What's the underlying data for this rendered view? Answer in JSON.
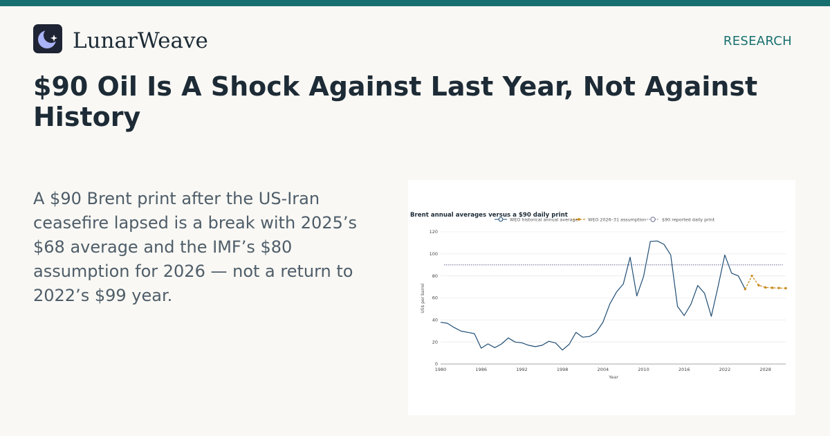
{
  "brand": {
    "name": "LunarWeave",
    "logo_icon": "crescent-moon-star-icon"
  },
  "section_label": "RESEARCH",
  "headline": "$90 Oil Is A Shock Against Last Year, Not Against History",
  "dek": "A $90 Brent print after the US-Iran ceasefire lapsed is a break with 2025’s $68 average and the IMF’s $80 assumption for 2026 — not a return to 2022’s $99 year.",
  "colors": {
    "accent": "#17706f",
    "historical": "#1f4d73",
    "assumption": "#c98a1a",
    "reference": "#6f6f96",
    "text_dark": "#1d2b36"
  },
  "chart_data": {
    "type": "line",
    "title": "Brent annual averages versus a $90 daily print",
    "xlabel": "Year",
    "ylabel": "US$ per barrel",
    "xlim": [
      1980,
      2031
    ],
    "ylim": [
      0,
      120
    ],
    "x_ticks": [
      1980,
      1986,
      1992,
      1998,
      2004,
      2010,
      2016,
      2022,
      2028
    ],
    "y_ticks": [
      0,
      20,
      40,
      60,
      80,
      100,
      120
    ],
    "grid": "horizontal",
    "legend_position": "top",
    "series": [
      {
        "name": "WEO historical annual average",
        "style": "solid",
        "x": [
          1980,
          1981,
          1982,
          1983,
          1984,
          1985,
          1986,
          1987,
          1988,
          1989,
          1990,
          1991,
          1992,
          1993,
          1994,
          1995,
          1996,
          1997,
          1998,
          1999,
          2000,
          2001,
          2002,
          2003,
          2004,
          2005,
          2006,
          2007,
          2008,
          2009,
          2010,
          2011,
          2012,
          2013,
          2014,
          2015,
          2016,
          2017,
          2018,
          2019,
          2020,
          2021,
          2022,
          2023,
          2024,
          2025
        ],
        "values": [
          37.9,
          37.0,
          33.2,
          29.9,
          28.8,
          27.6,
          14.4,
          18.3,
          14.9,
          18.2,
          23.7,
          20.0,
          19.3,
          17.0,
          15.8,
          17.0,
          20.6,
          19.1,
          12.7,
          17.9,
          28.7,
          24.4,
          25.0,
          28.8,
          38.0,
          54.4,
          65.4,
          72.7,
          97.0,
          61.8,
          79.6,
          111.3,
          111.7,
          108.7,
          99.0,
          52.4,
          44.0,
          54.4,
          71.3,
          64.2,
          43.3,
          70.4,
          99.0,
          82.5,
          80.0,
          68.0
        ]
      },
      {
        "name": "WEO 2026–31 assumption",
        "style": "dashed-markers",
        "x": [
          2025,
          2026,
          2027,
          2028,
          2029,
          2030,
          2031
        ],
        "values": [
          68.0,
          80.0,
          71.5,
          69.5,
          69.2,
          69.0,
          68.8
        ]
      },
      {
        "name": "$90 reported daily print",
        "style": "dotted-reference",
        "value": 90
      }
    ]
  }
}
